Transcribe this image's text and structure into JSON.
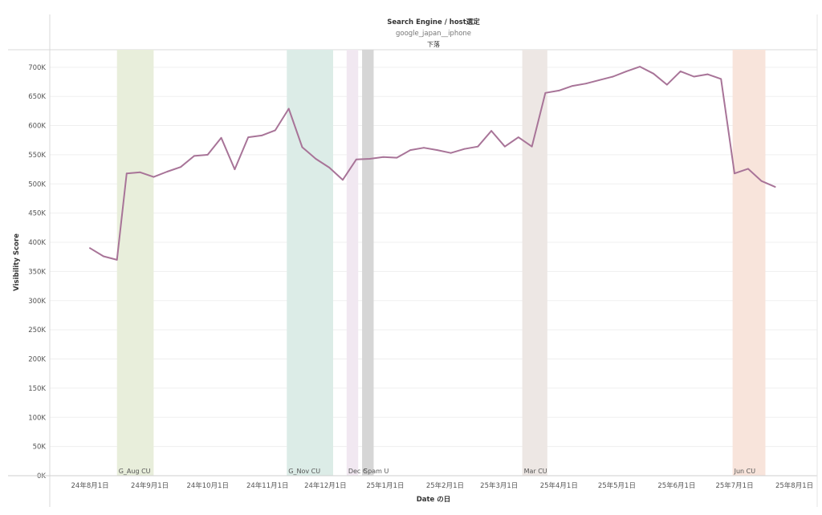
{
  "header": {
    "title": "Search Engine  /  host選定",
    "subtitle": "google_japan__iphone",
    "status": "下落"
  },
  "chart_data": {
    "type": "line",
    "title": "Search Engine  /  host選定",
    "xlabel": "Date の日",
    "ylabel": "Visibility Score",
    "ylim": [
      0,
      730000
    ],
    "xlim": [
      "2024-07-12",
      "2025-08-12"
    ],
    "grid": true,
    "y_ticks": [
      {
        "value": 0,
        "label": "0K"
      },
      {
        "value": 50000,
        "label": "50K"
      },
      {
        "value": 100000,
        "label": "100K"
      },
      {
        "value": 150000,
        "label": "150K"
      },
      {
        "value": 200000,
        "label": "200K"
      },
      {
        "value": 250000,
        "label": "250K"
      },
      {
        "value": 300000,
        "label": "300K"
      },
      {
        "value": 350000,
        "label": "350K"
      },
      {
        "value": 400000,
        "label": "400K"
      },
      {
        "value": 450000,
        "label": "450K"
      },
      {
        "value": 500000,
        "label": "500K"
      },
      {
        "value": 550000,
        "label": "550K"
      },
      {
        "value": 600000,
        "label": "600K"
      },
      {
        "value": 650000,
        "label": "650K"
      },
      {
        "value": 700000,
        "label": "700K"
      }
    ],
    "x_ticks": [
      {
        "date": "2024-08-01",
        "label": "24年8月1日"
      },
      {
        "date": "2024-09-01",
        "label": "24年9月1日"
      },
      {
        "date": "2024-10-01",
        "label": "24年10月1日"
      },
      {
        "date": "2024-11-01",
        "label": "24年11月1日"
      },
      {
        "date": "2024-12-01",
        "label": "24年12月1日"
      },
      {
        "date": "2025-01-01",
        "label": "25年1月1日"
      },
      {
        "date": "2025-02-01",
        "label": "25年2月1日"
      },
      {
        "date": "2025-03-01",
        "label": "25年3月1日"
      },
      {
        "date": "2025-04-01",
        "label": "25年4月1日"
      },
      {
        "date": "2025-05-01",
        "label": "25年5月1日"
      },
      {
        "date": "2025-06-01",
        "label": "25年6月1日"
      },
      {
        "date": "2025-07-01",
        "label": "25年7月1日"
      },
      {
        "date": "2025-08-01",
        "label": "25年8月1日"
      }
    ],
    "bands": [
      {
        "label": "G_Aug CU",
        "start": "2024-08-15",
        "end": "2024-09-03",
        "color": "#e8eedb"
      },
      {
        "label": "G_Nov CU",
        "start": "2024-11-11",
        "end": "2024-12-05",
        "color": "#dcece7"
      },
      {
        "label": "Dec C",
        "start": "2024-12-12",
        "end": "2024-12-18",
        "color": "#f1e8f1"
      },
      {
        "label": "Spam U",
        "start": "2024-12-20",
        "end": "2024-12-26",
        "color": "#d6d6d6"
      },
      {
        "label": "Mar CU",
        "start": "2025-03-13",
        "end": "2025-03-26",
        "color": "#ede7e4"
      },
      {
        "label": "Jun CU",
        "start": "2025-06-30",
        "end": "2025-07-17",
        "color": "#f8e4db"
      }
    ],
    "series": [
      {
        "color": "#a87498",
        "points": [
          [
            "2024-08-01",
            390000
          ],
          [
            "2024-08-08",
            376000
          ],
          [
            "2024-08-15",
            370000
          ],
          [
            "2024-08-20",
            518000
          ],
          [
            "2024-08-27",
            520000
          ],
          [
            "2024-09-03",
            512000
          ],
          [
            "2024-09-10",
            521000
          ],
          [
            "2024-09-17",
            529000
          ],
          [
            "2024-09-24",
            548000
          ],
          [
            "2024-10-01",
            550000
          ],
          [
            "2024-10-08",
            579000
          ],
          [
            "2024-10-15",
            525000
          ],
          [
            "2024-10-22",
            580000
          ],
          [
            "2024-10-29",
            583000
          ],
          [
            "2024-11-05",
            592000
          ],
          [
            "2024-11-12",
            629000
          ],
          [
            "2024-11-19",
            563000
          ],
          [
            "2024-11-26",
            543000
          ],
          [
            "2024-12-03",
            528000
          ],
          [
            "2024-12-10",
            507000
          ],
          [
            "2024-12-17",
            542000
          ],
          [
            "2024-12-24",
            543000
          ],
          [
            "2024-12-31",
            546000
          ],
          [
            "2025-01-07",
            545000
          ],
          [
            "2025-01-14",
            558000
          ],
          [
            "2025-01-21",
            562000
          ],
          [
            "2025-01-28",
            558000
          ],
          [
            "2025-02-04",
            553000
          ],
          [
            "2025-02-11",
            560000
          ],
          [
            "2025-02-18",
            564000
          ],
          [
            "2025-02-25",
            591000
          ],
          [
            "2025-03-04",
            564000
          ],
          [
            "2025-03-11",
            580000
          ],
          [
            "2025-03-18",
            564000
          ],
          [
            "2025-03-25",
            656000
          ],
          [
            "2025-04-01",
            660000
          ],
          [
            "2025-04-08",
            668000
          ],
          [
            "2025-04-15",
            672000
          ],
          [
            "2025-04-22",
            678000
          ],
          [
            "2025-04-29",
            684000
          ],
          [
            "2025-05-06",
            693000
          ],
          [
            "2025-05-13",
            701000
          ],
          [
            "2025-05-20",
            689000
          ],
          [
            "2025-05-27",
            670000
          ],
          [
            "2025-06-03",
            693000
          ],
          [
            "2025-06-10",
            684000
          ],
          [
            "2025-06-17",
            688000
          ],
          [
            "2025-06-24",
            680000
          ],
          [
            "2025-07-01",
            518000
          ],
          [
            "2025-07-08",
            526000
          ],
          [
            "2025-07-15",
            505000
          ],
          [
            "2025-07-22",
            495000
          ]
        ]
      }
    ]
  }
}
